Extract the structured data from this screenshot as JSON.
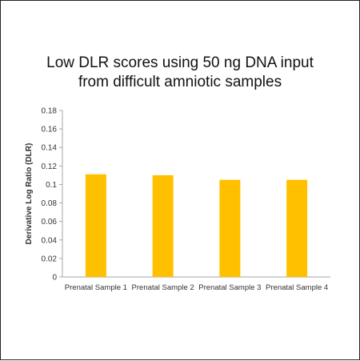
{
  "chart_data": {
    "type": "bar",
    "title_lines": [
      "Low DLR scores using 50 ng DNA input",
      "from difficult amniotic samples"
    ],
    "xlabel": "",
    "ylabel": "Derivative Log Ratio (DLR)",
    "categories": [
      "Prenatal Sample 1",
      "Prenatal Sample 2",
      "Prenatal Sample 3",
      "Prenatal Sample 4"
    ],
    "values": [
      0.111,
      0.11,
      0.105,
      0.105
    ],
    "ylim": [
      0,
      0.18
    ],
    "yticks": [
      "0",
      "0.02",
      "0.04",
      "0.06",
      "0.08",
      "0.1",
      "0.12",
      "0.14",
      "0.16",
      "0.18"
    ],
    "bar_color": "#FFC000",
    "grid": false,
    "legend": "none"
  }
}
